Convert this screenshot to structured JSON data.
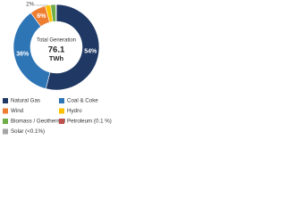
{
  "chart_data": {
    "type": "donut",
    "center_title": "Total Generation",
    "total": 76.1,
    "total_unit": "TWh",
    "categories": [
      "Natural Gas",
      "Coal & Coke",
      "Wind",
      "Hydro",
      "Biomass / Geothermal",
      "Petroleum (0.1 %)",
      "Solar (<0.1%)"
    ],
    "values": [
      54,
      36,
      6,
      2,
      2,
      0.1,
      0.05
    ],
    "value_labels": [
      "54%",
      "36%",
      "6%",
      "2%",
      null,
      null,
      null
    ],
    "colors": [
      "#1f3864",
      "#2e75b6",
      "#ed7d31",
      "#ffc000",
      "#70ad47",
      "#c0504d",
      "#a5a5a5"
    ]
  }
}
